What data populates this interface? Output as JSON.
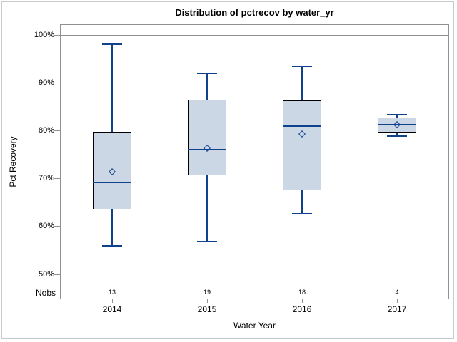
{
  "title": "Distribution of pctrecov by water_yr",
  "chart_data": {
    "type": "boxplot",
    "title": "Distribution of pctrecov by water_yr",
    "xlabel": "Water Year",
    "ylabel": "Pct Recovery",
    "nobs_label": "Nobs",
    "categories": [
      "2014",
      "2015",
      "2016",
      "2017"
    ],
    "yticks": [
      {
        "label": "100%",
        "value": 100
      },
      {
        "label": "90%",
        "value": 90
      },
      {
        "label": "80%",
        "value": 80
      },
      {
        "label": "70%",
        "value": 70
      },
      {
        "label": "60%",
        "value": 60
      },
      {
        "label": "50%",
        "value": 50
      }
    ],
    "ylim": [
      44.8,
      102.2
    ],
    "reference_line_value": 100,
    "legend": "none",
    "grid": "off",
    "series": [
      {
        "category": "2014",
        "nobs": 13,
        "whisker_low": 56.0,
        "q1": 63.5,
        "median": 69.2,
        "mean": 71.5,
        "q3": 79.8,
        "whisker_high": 98.0
      },
      {
        "category": "2015",
        "nobs": 19,
        "whisker_low": 56.9,
        "q1": 70.7,
        "median": 76.0,
        "mean": 76.4,
        "q3": 86.4,
        "whisker_high": 92.0
      },
      {
        "category": "2016",
        "nobs": 18,
        "whisker_low": 62.6,
        "q1": 67.6,
        "median": 81.0,
        "mean": 79.3,
        "q3": 86.3,
        "whisker_high": 93.5
      },
      {
        "category": "2017",
        "nobs": 4,
        "whisker_low": 78.9,
        "q1": 79.6,
        "median": 81.2,
        "mean": 81.3,
        "q3": 82.8,
        "whisker_high": 83.4
      }
    ]
  },
  "colors": {
    "box_fill": "#ccd7e5",
    "box_border": "#000000",
    "line_blue": "#10418c",
    "axis_gray": "#8e9094",
    "text": "#000000",
    "figure_border": "#c9c9ce",
    "background": "#ffffff"
  }
}
